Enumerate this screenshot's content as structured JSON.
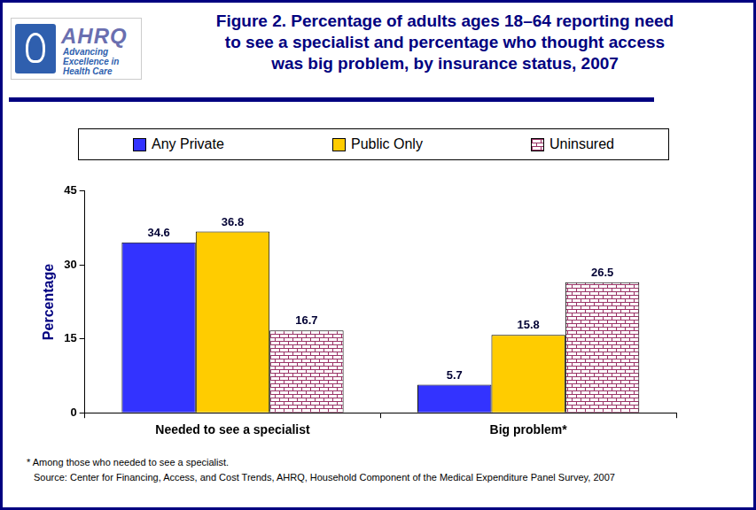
{
  "logo": {
    "name": "AHRQ",
    "tagline": [
      "Advancing",
      "Excellence in",
      "Health Care"
    ]
  },
  "chart_data": {
    "type": "bar",
    "title": [
      "Figure 2. Percentage of adults ages 18–64 reporting need",
      "to see a specialist and percentage who thought access",
      "was big problem, by insurance status, 2007"
    ],
    "ylabel": "Percentage",
    "categories": [
      "Needed to see a specialist",
      "Big problem*"
    ],
    "series": [
      {
        "name": "Any Private",
        "color": "#3333ff",
        "values": [
          34.6,
          5.7
        ]
      },
      {
        "name": "Public Only",
        "color": "#ffcc00",
        "values": [
          36.8,
          15.8
        ]
      },
      {
        "name": "Uninsured",
        "color": "#993366",
        "values": [
          16.7,
          26.5
        ]
      }
    ],
    "ylim": [
      0,
      45
    ],
    "yticks": [
      0,
      15,
      30,
      45
    ],
    "grid": false,
    "legend": "top",
    "data_labels": true,
    "annotations": [
      "* Among those who needed to see a specialist.",
      "Source: Center for Financing, Access, and Cost Trends, AHRQ, Household Component of the Medical Expenditure Panel Survey, 2007"
    ]
  }
}
